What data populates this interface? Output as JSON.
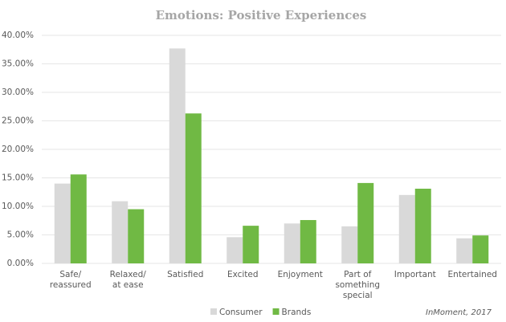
{
  "chart_data": {
    "type": "bar",
    "title": "Emotions: Positive Experiences",
    "categories": [
      "Safe/\nreassured",
      "Relaxed/\nat ease",
      "Satisfied",
      "Excited",
      "Enjoyment",
      "Part of\nsomething\nspecial",
      "Important",
      "Entertained"
    ],
    "series": [
      {
        "name": "Consumer",
        "color": "#d9d9d9",
        "values": [
          14.0,
          10.9,
          37.7,
          4.6,
          7.0,
          6.5,
          12.0,
          4.4
        ]
      },
      {
        "name": "Brands",
        "color": "#70b944",
        "values": [
          15.6,
          9.5,
          26.3,
          6.6,
          7.6,
          14.1,
          13.1,
          4.9
        ]
      }
    ],
    "ylim": [
      0,
      40
    ],
    "yticks": [
      {
        "value": 0,
        "label": "0.00%"
      },
      {
        "value": 5,
        "label": "5.00%"
      },
      {
        "value": 10,
        "label": "10.00%"
      },
      {
        "value": 15,
        "label": "15.00%"
      },
      {
        "value": 20,
        "label": "20.00%"
      },
      {
        "value": 25,
        "label": "25.00%"
      },
      {
        "value": 30,
        "label": "30.00%"
      },
      {
        "value": 35,
        "label": "35.00%"
      },
      {
        "value": 40,
        "label": "40.00%"
      }
    ],
    "grid": true,
    "legend": "bottom",
    "source": "InMoment, 2017"
  }
}
